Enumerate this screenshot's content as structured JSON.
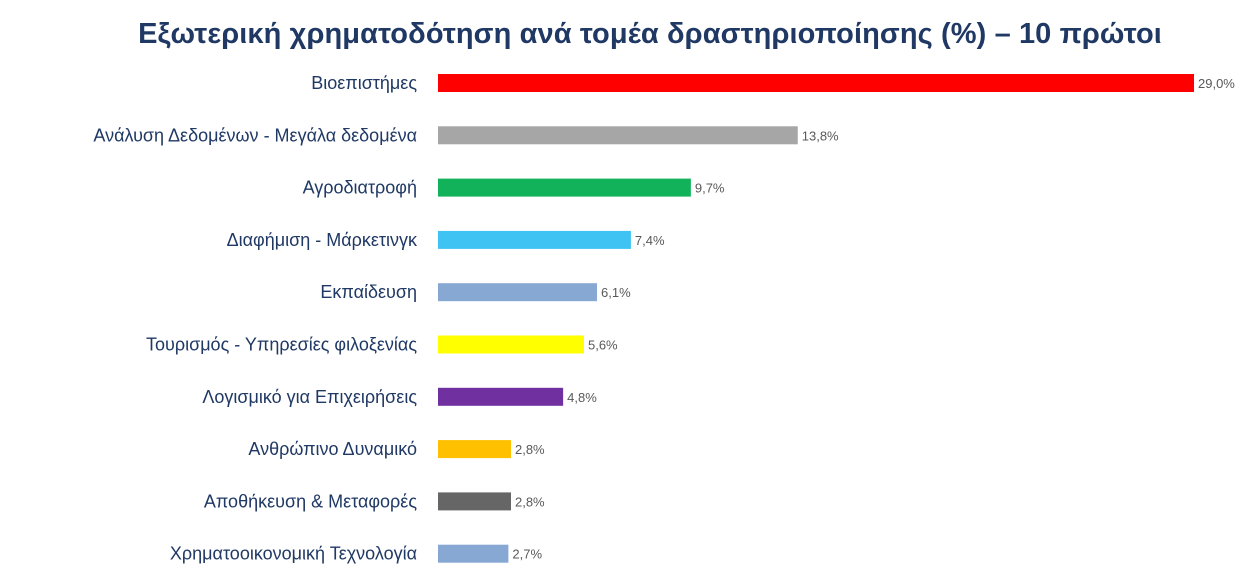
{
  "chart_data": {
    "type": "bar",
    "orientation": "horizontal",
    "title": "Εξωτερική χρηματοδότηση ανά τομέα δραστηριοποίησης (%) – 10 πρώτοι",
    "xlabel": "",
    "ylabel": "",
    "categories": [
      "Βιοεπιστήμες",
      "Ανάλυση Δεδομένων - Μεγάλα δεδομένα",
      "Αγροδιατροφή",
      "Διαφήμιση - Μάρκετινγκ",
      "Εκπαίδευση",
      "Τουρισμός - Υπηρεσίες φιλοξενίας",
      "Λογισμικό για Επιχειρήσεις",
      "Ανθρώπινο Δυναμικό",
      "Αποθήκευση & Μεταφορές",
      "Χρηματοοικονομική Τεχνολογία"
    ],
    "values": [
      29.0,
      13.8,
      9.7,
      7.4,
      6.1,
      5.6,
      4.8,
      2.8,
      2.8,
      2.7
    ],
    "value_labels": [
      "29,0%",
      "13,8%",
      "9,7%",
      "7,4%",
      "6,1%",
      "5,6%",
      "4,8%",
      "2,8%",
      "2,8%",
      "2,7%"
    ],
    "colors": [
      "#ff0000",
      "#a6a6a6",
      "#12b25a",
      "#3fc3f3",
      "#86a8d3",
      "#ffff00",
      "#7030a0",
      "#ffc000",
      "#666666",
      "#86a8d3"
    ],
    "xlim": [
      0,
      29.0
    ],
    "grid": false,
    "legend": "none"
  }
}
